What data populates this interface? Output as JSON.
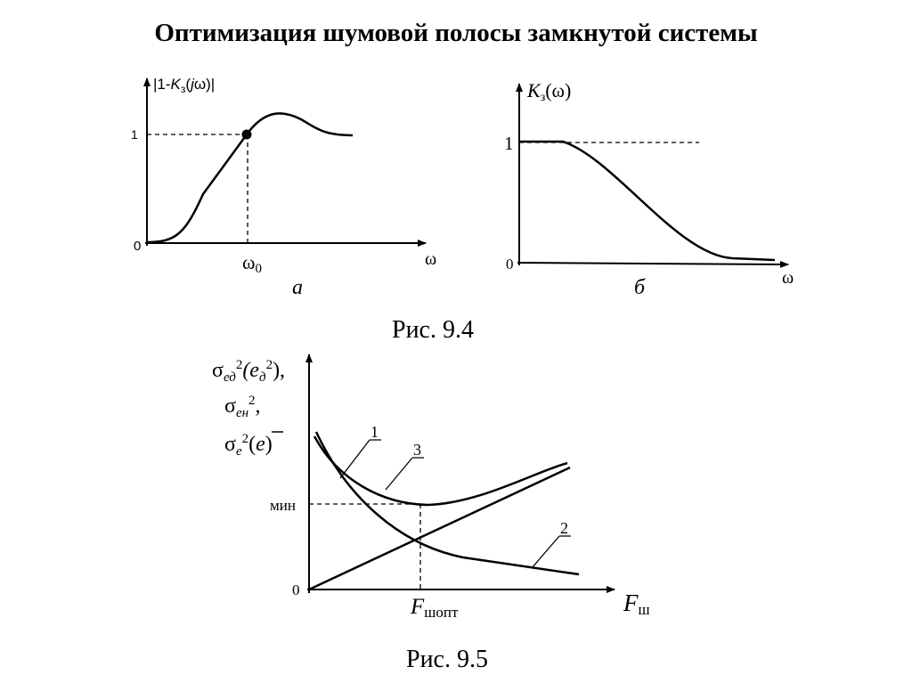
{
  "header": {
    "title": "Оптимизация шумовой полосы замкнутой системы"
  },
  "fig_a": {
    "ylabel": [
      "|1-",
      "K",
      "з",
      "(",
      "j",
      "ω)|"
    ],
    "ytick_1": "1",
    "ytick_0": "0",
    "x_mark": [
      "ω",
      "0"
    ],
    "xlabel": "ω",
    "caption": "а"
  },
  "fig_b": {
    "ylabel": [
      "K",
      "з",
      "(ω)"
    ],
    "ytick_1": "1",
    "ytick_0": "0",
    "xlabel": "ω",
    "caption": "б"
  },
  "fig_9_4": {
    "caption": "Рис. 9.4"
  },
  "fig_9_5": {
    "ylabel_lines": [
      [
        "σ",
        "ед",
        "2",
        "(e",
        "д",
        "2",
        "),"
      ],
      [
        "σ",
        "ен",
        "2",
        ","
      ],
      [
        "σ",
        "е",
        "2",
        "(",
        "e",
        ")"
      ]
    ],
    "ytick_min": "мин",
    "ytick_0": "0",
    "x_mark": [
      "F",
      "шопт"
    ],
    "xlabel": [
      "F",
      "ш"
    ],
    "curve_labels": [
      "1",
      "2",
      "3"
    ],
    "caption": "Рис. 9.5"
  }
}
